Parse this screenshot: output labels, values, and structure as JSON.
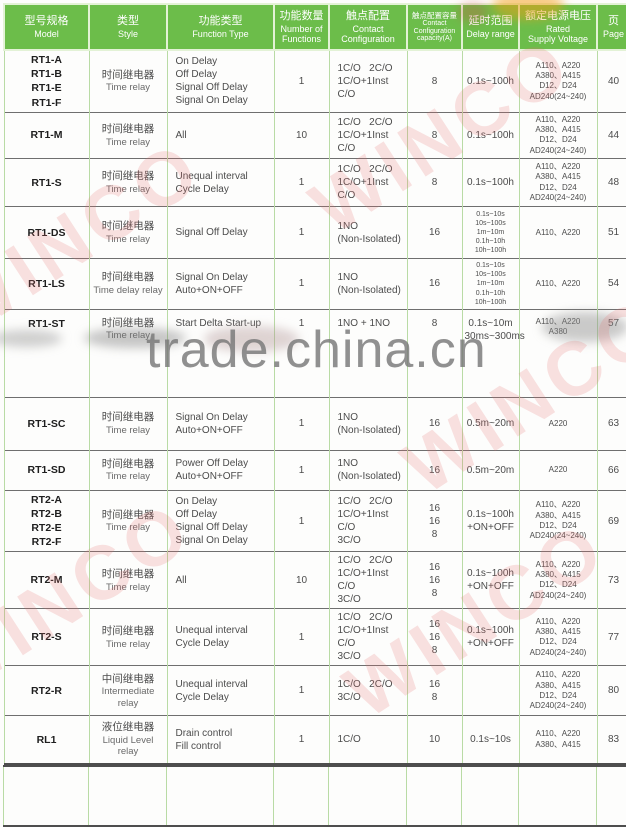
{
  "header": {
    "columns": [
      {
        "zh": "型号规格",
        "en_lines": [
          "Model"
        ]
      },
      {
        "zh": "类型",
        "en_lines": [
          "Style"
        ]
      },
      {
        "zh": "功能类型",
        "en_lines": [
          "Function Type"
        ]
      },
      {
        "zh": "功能数量",
        "en_lines": [
          "Number of",
          "Functions"
        ]
      },
      {
        "zh": "触点配置",
        "en_lines": [
          "Contact",
          "Configuration"
        ]
      },
      {
        "zh": "触点配置容量",
        "en_lines": [
          "Contact",
          "Configuration",
          "capacity(A)"
        ]
      },
      {
        "zh": "延时范围",
        "en_lines": [
          "Delay range"
        ]
      },
      {
        "zh": "额定电源电压",
        "en_lines": [
          "Rated",
          "Supply Voltage"
        ]
      },
      {
        "zh": "页",
        "en_lines": [
          "Page"
        ]
      }
    ]
  },
  "rows": [
    {
      "model": [
        "RT1-A",
        "RT1-B",
        "RT1-E",
        "RT1-F"
      ],
      "style_zh": "时间继电器",
      "style_en": [
        "Time relay"
      ],
      "functions": [
        "On Delay",
        "Off Delay",
        "Signal Off Delay",
        "Signal On Delay"
      ],
      "num": "1",
      "contact": [
        "1C/O   2C/O",
        "1C/O+1Inst C/O"
      ],
      "capacity": [
        "8"
      ],
      "delay": [
        "0.1s~100h"
      ],
      "voltage": [
        "A110、A220",
        "A380、A415",
        "D12、D24",
        "AD240(24~240)"
      ],
      "page": "40"
    },
    {
      "model": [
        "RT1-M"
      ],
      "style_zh": "时间继电器",
      "style_en": [
        "Time relay"
      ],
      "functions": [
        "All"
      ],
      "num": "10",
      "contact": [
        "1C/O   2C/O",
        "1C/O+1Inst C/O"
      ],
      "capacity": [
        "8"
      ],
      "delay": [
        "0.1s~100h"
      ],
      "voltage": [
        "A110、A220",
        "A380、A415",
        "D12、D24",
        "AD240(24~240)"
      ],
      "page": "44"
    },
    {
      "model": [
        "RT1-S"
      ],
      "style_zh": "时间继电器",
      "style_en": [
        "Time relay"
      ],
      "functions": [
        "Unequal interval",
        "Cycle Delay"
      ],
      "num": "1",
      "contact": [
        "1C/O   2C/O",
        "1C/O+1Inst C/O"
      ],
      "capacity": [
        "8"
      ],
      "delay": [
        "0.1s~100h"
      ],
      "voltage": [
        "A110、A220",
        "A380、A415",
        "D12、D24",
        "AD240(24~240)"
      ],
      "page": "48"
    },
    {
      "model": [
        "RT1-DS"
      ],
      "style_zh": "时间继电器",
      "style_en": [
        "Time relay"
      ],
      "functions": [
        "Signal Off Delay"
      ],
      "num": "1",
      "contact": [
        "1NO",
        "(Non-Isolated)"
      ],
      "capacity": [
        "16"
      ],
      "delay": [
        "0.1s~10s",
        "10s~100s",
        "1m~10m",
        "0.1h~10h",
        "10h~100h"
      ],
      "voltage": [
        "A110、A220"
      ],
      "page": "51"
    },
    {
      "model": [
        "RT1-LS"
      ],
      "style_zh": "时间继电器",
      "style_en": [
        "Time delay relay"
      ],
      "functions": [
        "Signal On Delay",
        "Auto+ON+OFF"
      ],
      "num": "1",
      "contact": [
        "1NO",
        "(Non-Isolated)"
      ],
      "capacity": [
        "16"
      ],
      "delay": [
        "0.1s~10s",
        "10s~100s",
        "1m~10m",
        "0.1h~10h",
        "10h~100h"
      ],
      "voltage": [
        "A110、A220"
      ],
      "page": "54"
    },
    {
      "model": [
        "RT1-ST"
      ],
      "style_zh": "时间继电器",
      "style_en": [
        "Time relay"
      ],
      "functions": [
        "Start Delta Start-up"
      ],
      "num": "1",
      "contact": [
        "1NO + 1NO"
      ],
      "capacity": [
        "8"
      ],
      "delay": [
        "0.1s~10m",
        "30ms~300ms"
      ],
      "voltage": [
        "A110、A220",
        "A380"
      ],
      "page": "57"
    },
    {
      "model": [
        "RT1-SC"
      ],
      "style_zh": "时间继电器",
      "style_en": [
        "Time relay"
      ],
      "functions": [
        "Signal On Delay",
        "Auto+ON+OFF"
      ],
      "num": "1",
      "contact": [
        "1NO",
        "(Non-Isolated)"
      ],
      "capacity": [
        "16"
      ],
      "delay": [
        "0.5m~20m"
      ],
      "voltage": [
        "A220"
      ],
      "page": "63"
    },
    {
      "model": [
        "RT1-SD"
      ],
      "style_zh": "时间继电器",
      "style_en": [
        "Time relay"
      ],
      "functions": [
        "Power Off Delay",
        "Auto+ON+OFF"
      ],
      "num": "1",
      "contact": [
        "1NO",
        "(Non-Isolated)"
      ],
      "capacity": [
        "16"
      ],
      "delay": [
        "0.5m~20m"
      ],
      "voltage": [
        "A220"
      ],
      "page": "66"
    },
    {
      "model": [
        "RT2-A",
        "RT2-B",
        "RT2-E",
        "RT2-F"
      ],
      "style_zh": "时间继电器",
      "style_en": [
        "Time relay"
      ],
      "functions": [
        "On Delay",
        "Off Delay",
        "Signal Off Delay",
        "Signal On Delay"
      ],
      "num": "1",
      "contact": [
        "1C/O   2C/O",
        "1C/O+1Inst C/O",
        "3C/O"
      ],
      "capacity": [
        "16",
        "16",
        "8"
      ],
      "delay": [
        "0.1s~100h",
        "+ON+OFF"
      ],
      "voltage": [
        "A110、A220",
        "A380、A415",
        "D12、D24",
        "AD240(24~240)"
      ],
      "page": "69"
    },
    {
      "model": [
        "RT2-M"
      ],
      "style_zh": "时间继电器",
      "style_en": [
        "Time relay"
      ],
      "functions": [
        "All"
      ],
      "num": "10",
      "contact": [
        "1C/O   2C/O",
        "1C/O+1Inst C/O",
        "3C/O"
      ],
      "capacity": [
        "16",
        "16",
        "8"
      ],
      "delay": [
        "0.1s~100h",
        "+ON+OFF"
      ],
      "voltage": [
        "A110、A220",
        "A380、A415",
        "D12、D24",
        "AD240(24~240)"
      ],
      "page": "73"
    },
    {
      "model": [
        "RT2-S"
      ],
      "style_zh": "时间继电器",
      "style_en": [
        "Time relay"
      ],
      "functions": [
        "Unequal interval",
        "Cycle Delay"
      ],
      "num": "1",
      "contact": [
        "1C/O   2C/O",
        "1C/O+1Inst C/O",
        "3C/O"
      ],
      "capacity": [
        "16",
        "16",
        "8"
      ],
      "delay": [
        "0.1s~100h",
        "+ON+OFF"
      ],
      "voltage": [
        "A110、A220",
        "A380、A415",
        "D12、D24",
        "AD240(24~240)"
      ],
      "page": "77"
    },
    {
      "model": [
        "RT2-R"
      ],
      "style_zh": "中间继电器",
      "style_en": [
        "Intermediate",
        "relay"
      ],
      "functions": [
        "Unequal interval",
        "Cycle Delay"
      ],
      "num": "1",
      "contact": [
        "1C/O   2C/O",
        "3C/O"
      ],
      "capacity": [
        "16",
        "8"
      ],
      "delay": [],
      "voltage": [
        "A110、A220",
        "A380、A415",
        "D12、D24",
        "AD240(24~240)"
      ],
      "page": "80"
    },
    {
      "model": [
        "RL1"
      ],
      "style_zh": "液位继电器",
      "style_en": [
        "Liquid Level",
        "relay"
      ],
      "functions": [
        "Drain control",
        "Fill control"
      ],
      "num": "1",
      "contact": [
        "1C/O"
      ],
      "capacity": [
        "10"
      ],
      "delay": [
        "0.1s~10s"
      ],
      "voltage": [
        "A110、A220",
        "A380、A415"
      ],
      "page": "83"
    }
  ],
  "watermarks": {
    "site_text": "trade.china.cn",
    "brand_text": "WINCO"
  }
}
